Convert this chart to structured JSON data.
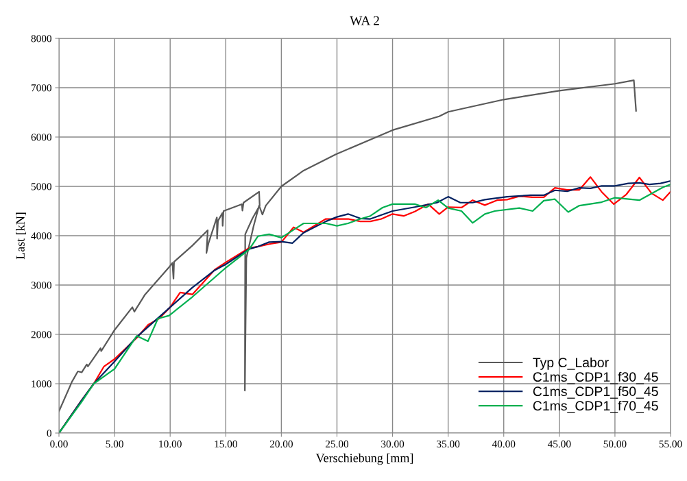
{
  "chart_data": {
    "type": "line",
    "title": "WA 2",
    "xlabel": "Verschiebung [mm]",
    "ylabel": "Last [kN]",
    "xlim": [
      0,
      55
    ],
    "ylim": [
      0,
      8000
    ],
    "xticks": [
      {
        "value": 0,
        "label": "0.00"
      },
      {
        "value": 5,
        "label": "5.00"
      },
      {
        "value": 10,
        "label": "10.00"
      },
      {
        "value": 15,
        "label": "15.00"
      },
      {
        "value": 20,
        "label": "20.00"
      },
      {
        "value": 25,
        "label": "25.00"
      },
      {
        "value": 30,
        "label": "30.00"
      },
      {
        "value": 35,
        "label": "35.00"
      },
      {
        "value": 40,
        "label": "40.00"
      },
      {
        "value": 45,
        "label": "45.00"
      },
      {
        "value": 50,
        "label": "50.00"
      },
      {
        "value": 55,
        "label": "55.00"
      }
    ],
    "yticks": [
      0,
      1000,
      2000,
      3000,
      4000,
      5000,
      6000,
      7000,
      8000
    ],
    "grid": true,
    "legend": "bottom right",
    "marker": "none",
    "line_style": "solid",
    "series": [
      {
        "name": "Typ C_Labor",
        "color": "#595959",
        "x": [
          0,
          1.17,
          1.7,
          2.05,
          2.5,
          2.6,
          3.74,
          3.8,
          4.97,
          6.6,
          6.78,
          7.75,
          9.9,
          10.2,
          10.3,
          10.35,
          12.0,
          13.38,
          13.26,
          13.45,
          14.2,
          14.22,
          14.3,
          14.7,
          14.72,
          14.8,
          16.45,
          16.5,
          16.6,
          18.0,
          18.05,
          17.4,
          16.75,
          16.72,
          16.85,
          17.5,
          18.0,
          18.3,
          18.6,
          20,
          22,
          24.9,
          30,
          34.2,
          35,
          40,
          45,
          50,
          51.7,
          51.75,
          51.9
        ],
        "values": [
          440,
          1040,
          1250,
          1230,
          1390,
          1350,
          1720,
          1660,
          2080,
          2550,
          2460,
          2810,
          3360,
          3450,
          3130,
          3470,
          3800,
          4110,
          3650,
          3850,
          4370,
          3940,
          4300,
          4460,
          4200,
          4500,
          4640,
          4510,
          4670,
          4890,
          4610,
          4350,
          4030,
          860,
          3550,
          4190,
          4610,
          4430,
          4610,
          5000,
          5320,
          5650,
          6140,
          6420,
          6510,
          6760,
          6940,
          7080,
          7150,
          7000,
          6530
        ]
      },
      {
        "name": "C1ms_CDP1_f30_45",
        "color": "#ff0000",
        "x": [
          0,
          2,
          3.13,
          4.05,
          5.0,
          7.0,
          8.05,
          9.0,
          10.0,
          10.9,
          12.0,
          13.0,
          14.0,
          15.0,
          17.1,
          17.9,
          18.9,
          20,
          21.1,
          22,
          24,
          26,
          27.1,
          28,
          29,
          30,
          31,
          32,
          33.2,
          34.2,
          35,
          36.2,
          37.2,
          38.3,
          39.4,
          40.3,
          41.4,
          42.6,
          43.6,
          44.6,
          45.7,
          46.8,
          47.8,
          48.8,
          49.9,
          51.0,
          52.2,
          53.3,
          54.3,
          55
        ],
        "values": [
          0,
          650,
          1000,
          1350,
          1500,
          1930,
          2200,
          2320,
          2550,
          2850,
          2810,
          3060,
          3310,
          3460,
          3750,
          3780,
          3830,
          3870,
          4170,
          4070,
          4340,
          4340,
          4290,
          4290,
          4340,
          4440,
          4400,
          4490,
          4640,
          4440,
          4580,
          4570,
          4720,
          4620,
          4720,
          4730,
          4800,
          4780,
          4780,
          4970,
          4930,
          4930,
          5190,
          4890,
          4640,
          4830,
          5180,
          4860,
          4720,
          4890
        ]
      },
      {
        "name": "C1ms_CDP1_f50_45",
        "color": "#002060",
        "x": [
          0,
          2,
          3.13,
          5,
          7,
          9,
          10,
          12,
          14,
          15,
          17.1,
          17.9,
          18.9,
          20,
          21,
          22,
          24,
          25,
          26,
          27.1,
          28,
          30,
          32,
          34,
          35,
          36.1,
          37.2,
          38.3,
          40.3,
          42.4,
          43.6,
          44.6,
          45.7,
          46.8,
          47.8,
          48.8,
          50.0,
          51.2,
          52.2,
          53.1,
          54.1,
          55
        ],
        "values": [
          0,
          650,
          1000,
          1450,
          1950,
          2350,
          2550,
          2950,
          3300,
          3420,
          3730,
          3780,
          3870,
          3880,
          3850,
          4060,
          4290,
          4380,
          4440,
          4350,
          4340,
          4500,
          4580,
          4670,
          4790,
          4670,
          4670,
          4730,
          4790,
          4820,
          4820,
          4920,
          4900,
          4970,
          4960,
          5010,
          5010,
          5060,
          5070,
          5040,
          5060,
          5110
        ]
      },
      {
        "name": "C1ms_CDP1_f70_45",
        "color": "#00b050",
        "x": [
          0,
          2,
          3.13,
          5,
          7.0,
          8.0,
          8.9,
          9.9,
          12,
          14.9,
          17.1,
          17.9,
          18.9,
          20,
          21.1,
          22,
          24,
          25,
          26,
          27.1,
          28,
          29.1,
          30,
          32,
          33,
          34.1,
          35,
          36.2,
          37.2,
          38.3,
          39.2,
          41.4,
          42.6,
          43.6,
          44.6,
          45.8,
          46.8,
          48.8,
          50.0,
          52.2,
          54.3,
          55
        ],
        "values": [
          0,
          620,
          1000,
          1300,
          1970,
          1860,
          2320,
          2380,
          2760,
          3330,
          3720,
          3990,
          4030,
          3960,
          4120,
          4250,
          4250,
          4200,
          4250,
          4340,
          4400,
          4570,
          4640,
          4640,
          4570,
          4720,
          4560,
          4500,
          4260,
          4440,
          4500,
          4560,
          4500,
          4710,
          4740,
          4480,
          4610,
          4680,
          4770,
          4720,
          4980,
          5040
        ]
      }
    ]
  }
}
